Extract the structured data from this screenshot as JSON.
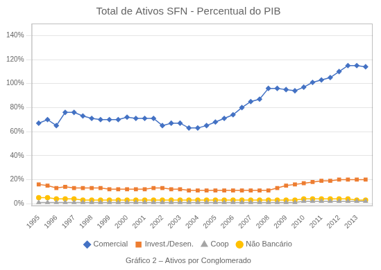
{
  "chart_data": {
    "type": "line",
    "title": "Total de Ativos SFN - Percentual do PIB",
    "caption": "Gráfico 2 – Ativos por Conglomerado",
    "x": [
      1995,
      1995.5,
      1996,
      1996.5,
      1997,
      1997.5,
      1998,
      1998.5,
      1999,
      1999.5,
      2000,
      2000.5,
      2001,
      2001.5,
      2002,
      2002.5,
      2003,
      2003.5,
      2004,
      2004.5,
      2005,
      2005.5,
      2006,
      2006.5,
      2007,
      2007.5,
      2008,
      2008.5,
      2009,
      2009.5,
      2010,
      2010.5,
      2011,
      2011.5,
      2012,
      2012.5,
      2013,
      2013.5
    ],
    "series": [
      {
        "name": "Comercial",
        "color": "#4472C4",
        "marker": "diamond",
        "values": [
          0.67,
          0.7,
          0.65,
          0.76,
          0.76,
          0.73,
          0.71,
          0.7,
          0.7,
          0.7,
          0.72,
          0.71,
          0.71,
          0.71,
          0.65,
          0.67,
          0.67,
          0.63,
          0.63,
          0.65,
          0.68,
          0.71,
          0.74,
          0.8,
          0.85,
          0.87,
          0.96,
          0.96,
          0.95,
          0.94,
          0.97,
          1.01,
          1.03,
          1.05,
          1.1,
          1.15,
          1.15,
          1.14
        ]
      },
      {
        "name": "Invest./Desen.",
        "color": "#ED7D31",
        "marker": "square",
        "values": [
          0.16,
          0.15,
          0.13,
          0.14,
          0.13,
          0.13,
          0.13,
          0.13,
          0.12,
          0.12,
          0.12,
          0.12,
          0.12,
          0.13,
          0.13,
          0.12,
          0.12,
          0.11,
          0.11,
          0.11,
          0.11,
          0.11,
          0.11,
          0.11,
          0.11,
          0.11,
          0.11,
          0.13,
          0.15,
          0.16,
          0.17,
          0.18,
          0.19,
          0.19,
          0.2,
          0.2,
          0.2,
          0.2
        ]
      },
      {
        "name": "Coop",
        "color": "#A5A5A5",
        "marker": "triangle",
        "values": [
          0.01,
          0.01,
          0.01,
          0.01,
          0.01,
          0.01,
          0.01,
          0.01,
          0.01,
          0.01,
          0.01,
          0.01,
          0.01,
          0.01,
          0.01,
          0.01,
          0.01,
          0.01,
          0.01,
          0.01,
          0.01,
          0.01,
          0.01,
          0.01,
          0.01,
          0.01,
          0.01,
          0.01,
          0.01,
          0.01,
          0.02,
          0.02,
          0.02,
          0.02,
          0.02,
          0.02,
          0.02,
          0.02
        ]
      },
      {
        "name": "Não Bancário",
        "color": "#FFC000",
        "marker": "circle",
        "values": [
          0.05,
          0.05,
          0.04,
          0.04,
          0.04,
          0.03,
          0.03,
          0.03,
          0.03,
          0.03,
          0.03,
          0.03,
          0.03,
          0.03,
          0.03,
          0.03,
          0.03,
          0.03,
          0.03,
          0.03,
          0.03,
          0.03,
          0.03,
          0.03,
          0.03,
          0.03,
          0.03,
          0.03,
          0.03,
          0.03,
          0.04,
          0.04,
          0.04,
          0.04,
          0.04,
          0.04,
          0.03,
          0.03
        ]
      }
    ],
    "xlim": [
      1994.6,
      2013.9
    ],
    "xticks": [
      1995,
      1996,
      1997,
      1998,
      1999,
      2000,
      2001,
      2002,
      2003,
      2004,
      2005,
      2006,
      2007,
      2008,
      2009,
      2010,
      2011,
      2012,
      2013
    ],
    "ylim": [
      -0.02,
      1.5
    ],
    "yticks": [
      {
        "value": 0.0,
        "label": "0%"
      },
      {
        "value": 0.2,
        "label": "20%"
      },
      {
        "value": 0.4,
        "label": "40%"
      },
      {
        "value": 0.6,
        "label": "60%"
      },
      {
        "value": 0.8,
        "label": "80%"
      },
      {
        "value": 1.0,
        "label": "100%"
      },
      {
        "value": 1.2,
        "label": "120%"
      },
      {
        "value": 1.4,
        "label": "140%"
      }
    ],
    "grid": "y",
    "legend": "bottom"
  }
}
